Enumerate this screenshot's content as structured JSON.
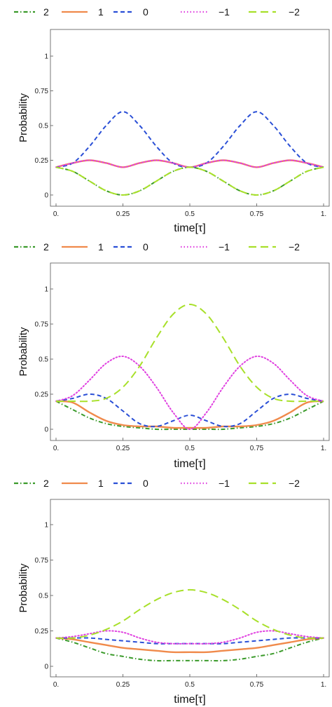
{
  "chart_data": [
    {
      "type": "line",
      "xlabel": "time[τ]",
      "ylabel": "Probability",
      "xlim": [
        0,
        1
      ],
      "ylim": [
        0,
        1
      ],
      "xticks": [
        "0.",
        "0.25",
        "0.5",
        "0.75",
        "1."
      ],
      "yticks": [
        "0",
        "0.25",
        "0.5",
        "0.75",
        "1"
      ],
      "legend_position": "top",
      "x": [
        0,
        0.0625,
        0.125,
        0.1875,
        0.25,
        0.3125,
        0.375,
        0.4375,
        0.5,
        0.5625,
        0.625,
        0.6875,
        0.75,
        0.8125,
        0.875,
        0.9375,
        1
      ],
      "series": [
        {
          "name": "2",
          "color": "#3a9a2a",
          "dash": "dashdot",
          "values": [
            0.2,
            0.17,
            0.1,
            0.03,
            0.0,
            0.03,
            0.1,
            0.17,
            0.2,
            0.17,
            0.1,
            0.03,
            0.0,
            0.03,
            0.1,
            0.17,
            0.2
          ]
        },
        {
          "name": "1",
          "color": "#f08a4b",
          "dash": "solid",
          "values": [
            0.2,
            0.23,
            0.25,
            0.23,
            0.2,
            0.23,
            0.25,
            0.23,
            0.2,
            0.23,
            0.25,
            0.23,
            0.2,
            0.23,
            0.25,
            0.23,
            0.2
          ]
        },
        {
          "name": "0",
          "color": "#2a4fd6",
          "dash": "dash",
          "values": [
            0.2,
            0.23,
            0.35,
            0.5,
            0.6,
            0.5,
            0.35,
            0.23,
            0.2,
            0.23,
            0.35,
            0.5,
            0.6,
            0.5,
            0.35,
            0.23,
            0.2
          ]
        },
        {
          "name": "−1",
          "color": "#e040e0",
          "dash": "dot",
          "values": [
            0.2,
            0.23,
            0.25,
            0.23,
            0.2,
            0.23,
            0.25,
            0.23,
            0.2,
            0.23,
            0.25,
            0.23,
            0.2,
            0.23,
            0.25,
            0.23,
            0.2
          ]
        },
        {
          "name": "−2",
          "color": "#a8e02a",
          "dash": "longdash",
          "values": [
            0.2,
            0.17,
            0.1,
            0.03,
            0.0,
            0.03,
            0.1,
            0.17,
            0.2,
            0.17,
            0.1,
            0.03,
            0.0,
            0.03,
            0.1,
            0.17,
            0.2
          ]
        }
      ]
    },
    {
      "type": "line",
      "xlabel": "time[τ]",
      "ylabel": "Probability",
      "xlim": [
        0,
        1
      ],
      "ylim": [
        0,
        1
      ],
      "xticks": [
        "0.",
        "0.25",
        "0.5",
        "0.75",
        "1."
      ],
      "yticks": [
        "0",
        "0.25",
        "0.5",
        "0.75",
        "1"
      ],
      "legend_position": "top",
      "x": [
        0,
        0.0625,
        0.125,
        0.1875,
        0.25,
        0.3125,
        0.375,
        0.4375,
        0.5,
        0.5625,
        0.625,
        0.6875,
        0.75,
        0.8125,
        0.875,
        0.9375,
        1
      ],
      "series": [
        {
          "name": "2",
          "color": "#3a9a2a",
          "dash": "dashdot",
          "values": [
            0.2,
            0.14,
            0.08,
            0.04,
            0.02,
            0.01,
            0.0,
            0.0,
            0.0,
            0.0,
            0.0,
            0.01,
            0.02,
            0.04,
            0.08,
            0.14,
            0.2
          ]
        },
        {
          "name": "1",
          "color": "#f08a4b",
          "dash": "solid",
          "values": [
            0.2,
            0.19,
            0.12,
            0.06,
            0.03,
            0.02,
            0.02,
            0.01,
            0.01,
            0.01,
            0.02,
            0.02,
            0.03,
            0.06,
            0.12,
            0.19,
            0.2
          ]
        },
        {
          "name": "0",
          "color": "#2a4fd6",
          "dash": "dash",
          "values": [
            0.2,
            0.22,
            0.25,
            0.22,
            0.13,
            0.04,
            0.02,
            0.06,
            0.1,
            0.06,
            0.02,
            0.04,
            0.13,
            0.22,
            0.25,
            0.22,
            0.2
          ]
        },
        {
          "name": "−1",
          "color": "#e040e0",
          "dash": "dot",
          "values": [
            0.2,
            0.24,
            0.35,
            0.47,
            0.52,
            0.45,
            0.3,
            0.12,
            0.0,
            0.12,
            0.3,
            0.45,
            0.52,
            0.47,
            0.35,
            0.24,
            0.2
          ]
        },
        {
          "name": "−2",
          "color": "#a8e02a",
          "dash": "longdash",
          "values": [
            0.2,
            0.2,
            0.2,
            0.22,
            0.3,
            0.45,
            0.65,
            0.82,
            0.89,
            0.82,
            0.65,
            0.45,
            0.3,
            0.22,
            0.2,
            0.2,
            0.2
          ]
        }
      ]
    },
    {
      "type": "line",
      "xlabel": "time[τ]",
      "ylabel": "Probability",
      "xlim": [
        0,
        1
      ],
      "ylim": [
        0,
        1
      ],
      "xticks": [
        "0.",
        "0.25",
        "0.5",
        "0.75",
        "1."
      ],
      "yticks": [
        "0",
        "0.25",
        "0.5",
        "0.75",
        "1"
      ],
      "legend_position": "top",
      "x": [
        0,
        0.0625,
        0.125,
        0.1875,
        0.25,
        0.3125,
        0.375,
        0.4375,
        0.5,
        0.5625,
        0.625,
        0.6875,
        0.75,
        0.8125,
        0.875,
        0.9375,
        1
      ],
      "series": [
        {
          "name": "2",
          "color": "#3a9a2a",
          "dash": "dashdot",
          "values": [
            0.2,
            0.17,
            0.13,
            0.09,
            0.07,
            0.05,
            0.04,
            0.04,
            0.04,
            0.04,
            0.04,
            0.05,
            0.07,
            0.09,
            0.13,
            0.17,
            0.2
          ]
        },
        {
          "name": "1",
          "color": "#f08a4b",
          "dash": "solid",
          "values": [
            0.2,
            0.19,
            0.17,
            0.15,
            0.13,
            0.12,
            0.11,
            0.1,
            0.1,
            0.1,
            0.11,
            0.12,
            0.13,
            0.15,
            0.17,
            0.19,
            0.2
          ]
        },
        {
          "name": "0",
          "color": "#2a4fd6",
          "dash": "dash",
          "values": [
            0.2,
            0.2,
            0.2,
            0.19,
            0.18,
            0.17,
            0.16,
            0.16,
            0.16,
            0.16,
            0.16,
            0.17,
            0.18,
            0.19,
            0.2,
            0.2,
            0.2
          ]
        },
        {
          "name": "−1",
          "color": "#e040e0",
          "dash": "dot",
          "values": [
            0.2,
            0.21,
            0.23,
            0.25,
            0.24,
            0.2,
            0.17,
            0.16,
            0.16,
            0.16,
            0.17,
            0.2,
            0.24,
            0.25,
            0.23,
            0.21,
            0.2
          ]
        },
        {
          "name": "−2",
          "color": "#a8e02a",
          "dash": "longdash",
          "values": [
            0.2,
            0.2,
            0.22,
            0.26,
            0.32,
            0.4,
            0.47,
            0.52,
            0.54,
            0.52,
            0.47,
            0.4,
            0.32,
            0.26,
            0.22,
            0.2,
            0.2
          ]
        }
      ]
    }
  ]
}
